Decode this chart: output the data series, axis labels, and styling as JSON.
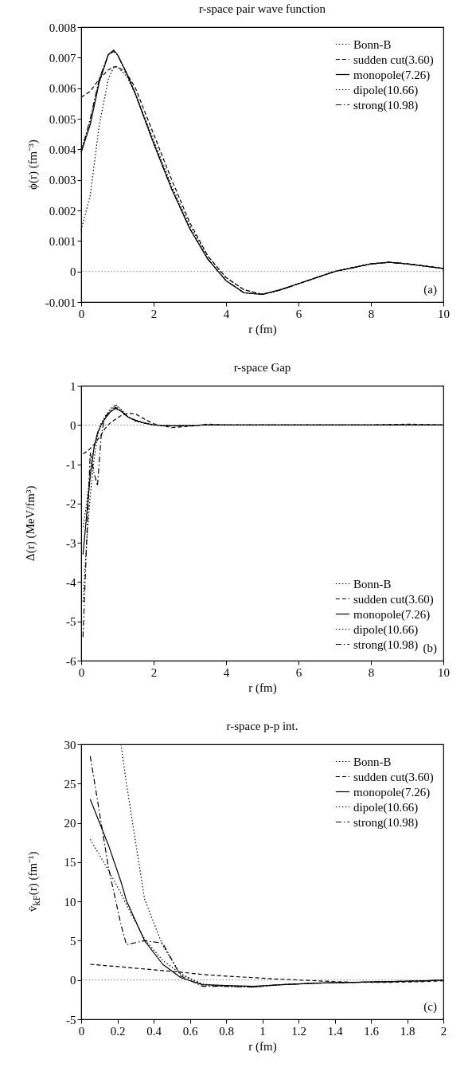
{
  "chart_data": [
    {
      "type": "line",
      "title": "r-space pair wave function",
      "xlabel": "r (fm)",
      "ylabel": "ϕ(r) (fm⁻³)",
      "annotations": [
        "(a)"
      ],
      "x": [
        0,
        0.25,
        0.5,
        0.75,
        0.9,
        1.0,
        1.25,
        1.5,
        2,
        2.5,
        3,
        3.5,
        4,
        4.5,
        5,
        5.5,
        6,
        7,
        8,
        8.5,
        9,
        10
      ],
      "series": [
        {
          "name": "Bonn-B",
          "color": "#000000",
          "line_style": "dotted",
          "values": [
            0.00135,
            0.0025,
            0.0048,
            0.0063,
            0.0067,
            0.0067,
            0.0064,
            0.0058,
            0.0043,
            0.0028,
            0.0015,
            0.0005,
            -0.0002,
            -0.0006,
            -0.00075,
            -0.0006,
            -0.0004,
            0,
            0.00025,
            0.0003,
            0.00025,
            0.0001
          ]
        },
        {
          "name": "sudden cut(3.60)",
          "color": "#000000",
          "line_style": "dashed",
          "values": [
            0.0057,
            0.0059,
            0.0063,
            0.0066,
            0.0067,
            0.0067,
            0.0065,
            0.006,
            0.0045,
            0.003,
            0.0016,
            0.0005,
            -0.0002,
            -0.0006,
            -0.00075,
            -0.0006,
            -0.0004,
            0,
            0.00025,
            0.0003,
            0.00025,
            0.0001
          ]
        },
        {
          "name": "monopole(7.26)",
          "color": "#000000",
          "line_style": "solid",
          "values": [
            0.0039,
            0.0048,
            0.0062,
            0.0071,
            0.00725,
            0.0071,
            0.0065,
            0.0058,
            0.0042,
            0.0027,
            0.0014,
            0.0004,
            -0.0003,
            -0.0007,
            -0.00075,
            -0.0006,
            -0.0004,
            0,
            0.00025,
            0.0003,
            0.00025,
            0.0001
          ]
        },
        {
          "name": "dipole(10.66)",
          "color": "#000000",
          "line_style": "dotted",
          "values": [
            0.004,
            0.0049,
            0.0063,
            0.0071,
            0.0072,
            0.0071,
            0.0065,
            0.0058,
            0.0042,
            0.0027,
            0.0014,
            0.0004,
            -0.0003,
            -0.0007,
            -0.00075,
            -0.0006,
            -0.0004,
            0,
            0.00025,
            0.0003,
            0.00025,
            0.0001
          ]
        },
        {
          "name": "strong(10.98)",
          "color": "#000000",
          "line_style": "dashdot",
          "values": [
            0.0039,
            0.005,
            0.0063,
            0.0071,
            0.0072,
            0.0071,
            0.0065,
            0.0058,
            0.0042,
            0.0027,
            0.0014,
            0.0004,
            -0.0003,
            -0.0007,
            -0.00075,
            -0.0006,
            -0.0004,
            0,
            0.00025,
            0.0003,
            0.00025,
            0.0001
          ]
        }
      ],
      "xlim": [
        0,
        10
      ],
      "xticks": [
        0,
        2,
        4,
        6,
        8,
        10
      ],
      "ylim": [
        -0.001,
        0.008
      ],
      "yticks": [
        -0.001,
        0,
        0.001,
        0.002,
        0.003,
        0.004,
        0.005,
        0.006,
        0.007,
        0.008
      ],
      "ref_lines": [
        {
          "axis": "y",
          "value": 0,
          "color": "#808080",
          "line_style": "dotted"
        }
      ],
      "grid": false,
      "legend": "top right",
      "marker": "none"
    },
    {
      "type": "line",
      "title": "r-space Gap",
      "xlabel": "r (fm)",
      "ylabel": "Δ(r) (MeV/fm³)",
      "annotations": [
        "(b)"
      ],
      "x": [
        0.05,
        0.15,
        0.25,
        0.35,
        0.45,
        0.55,
        0.65,
        0.8,
        0.95,
        1.1,
        1.3,
        1.5,
        1.75,
        2,
        2.5,
        3,
        3.5,
        4,
        5,
        6,
        7,
        8,
        9,
        10
      ],
      "series": [
        {
          "name": "Bonn-B",
          "color": "#000000",
          "line_style": "dotted",
          "values": [
            -2.6,
            -2.0,
            -1.2,
            -0.6,
            -0.2,
            0,
            0.15,
            0.35,
            0.5,
            0.38,
            0.2,
            0.1,
            0.05,
            0,
            -0.02,
            -0.01,
            0,
            0,
            0,
            0,
            0,
            0,
            0,
            0
          ]
        },
        {
          "name": "sudden cut(3.60)",
          "color": "#000000",
          "line_style": "dashed",
          "values": [
            -0.73,
            -0.68,
            -0.6,
            -0.5,
            -0.38,
            -0.25,
            -0.1,
            0.05,
            0.15,
            0.24,
            0.3,
            0.28,
            0.15,
            0.03,
            -0.07,
            -0.03,
            0.02,
            0,
            0,
            0,
            0,
            0,
            0.02,
            0
          ]
        },
        {
          "name": "monopole(7.26)",
          "color": "#000000",
          "line_style": "solid",
          "values": [
            -3.3,
            -2.3,
            -1.3,
            -0.6,
            -0.2,
            0,
            0.15,
            0.33,
            0.42,
            0.35,
            0.2,
            0.12,
            0.05,
            0,
            -0.02,
            -0.01,
            0,
            0,
            0,
            0,
            0,
            0,
            0,
            0
          ]
        },
        {
          "name": "dipole(10.66)",
          "color": "#000000",
          "line_style": "dotted",
          "values": [
            -4.5,
            -3.0,
            -1.8,
            -0.9,
            -0.3,
            0.05,
            0.2,
            0.4,
            0.52,
            0.4,
            0.2,
            0.1,
            0.05,
            0,
            -0.02,
            -0.01,
            0,
            0,
            0,
            0,
            0,
            0,
            0,
            0
          ]
        },
        {
          "name": "strong(10.98)",
          "color": "#000000",
          "line_style": "dashdot",
          "values": [
            -5.4,
            -3.0,
            -0.7,
            -1.2,
            -1.55,
            -0.3,
            0.2,
            0.35,
            0.45,
            0.35,
            0.2,
            0.12,
            0.05,
            0,
            -0.02,
            -0.01,
            0,
            0,
            0,
            0,
            0,
            0,
            0,
            0
          ]
        }
      ],
      "xlim": [
        0,
        10
      ],
      "xticks": [
        0,
        2,
        4,
        6,
        8,
        10
      ],
      "ylim": [
        -6,
        1
      ],
      "yticks": [
        -6,
        -5,
        -4,
        -3,
        -2,
        -1,
        0,
        1
      ],
      "ref_lines": [
        {
          "axis": "y",
          "value": 0,
          "color": "#808080",
          "line_style": "dotted"
        }
      ],
      "grid": false,
      "legend": "bottom right",
      "marker": "none"
    },
    {
      "type": "line",
      "title": "r-space p-p int.",
      "xlabel": "r (fm)",
      "ylabel": "v̄$_{kF}$(r) (fm⁻¹)",
      "annotations": [
        "(c)"
      ],
      "x": [
        0.05,
        0.15,
        0.22,
        0.25,
        0.35,
        0.45,
        0.55,
        0.67,
        0.8,
        0.95,
        1.1,
        1.3,
        1.5,
        1.7,
        1.9,
        2
      ],
      "series": [
        {
          "name": "Bonn-B",
          "color": "#000000",
          "line_style": "dotted",
          "values": [
            null,
            null,
            30,
            25,
            10.3,
            4.4,
            0.7,
            -0.5,
            -0.8,
            -0.9,
            -0.6,
            -0.4,
            -0.3,
            -0.2,
            -0.1,
            0
          ]
        },
        {
          "name": "sudden cut(3.60)",
          "color": "#000000",
          "line_style": "dashed",
          "values": [
            2,
            1.8,
            1.7,
            1.6,
            1.4,
            1.2,
            1.0,
            0.7,
            0.5,
            0.3,
            0.1,
            -0.1,
            -0.3,
            -0.3,
            -0.2,
            -0.1
          ]
        },
        {
          "name": "monopole(7.26)",
          "color": "#000000",
          "line_style": "solid",
          "values": [
            23,
            17.2,
            12.5,
            10.1,
            5,
            2,
            0.3,
            -0.6,
            -0.7,
            -0.8,
            -0.6,
            -0.4,
            -0.3,
            -0.2,
            -0.1,
            0
          ]
        },
        {
          "name": "dipole(10.66)",
          "color": "#000000",
          "line_style": "dotted",
          "values": [
            17.9,
            14,
            11,
            9.6,
            5.2,
            2.5,
            0.8,
            -0.6,
            -0.8,
            -0.9,
            -0.6,
            -0.4,
            -0.3,
            -0.2,
            -0.1,
            0
          ]
        },
        {
          "name": "strong(10.98)",
          "color": "#000000",
          "line_style": "dashdot",
          "values": [
            28.5,
            14.4,
            7,
            4.5,
            5,
            4.7,
            0.5,
            -0.8,
            -0.8,
            -0.9,
            -0.6,
            -0.4,
            -0.3,
            -0.2,
            -0.1,
            0
          ]
        }
      ],
      "xlim": [
        0,
        2
      ],
      "xticks": [
        0,
        0.2,
        0.4,
        0.6,
        0.8,
        1,
        1.2,
        1.4,
        1.6,
        1.8,
        2
      ],
      "ylim": [
        -5,
        30
      ],
      "yticks": [
        -5,
        0,
        5,
        10,
        15,
        20,
        25,
        30
      ],
      "ref_lines": [
        {
          "axis": "y",
          "value": 0,
          "color": "#808080",
          "line_style": "dotted"
        }
      ],
      "grid": false,
      "legend": "top right",
      "marker": "none"
    }
  ]
}
